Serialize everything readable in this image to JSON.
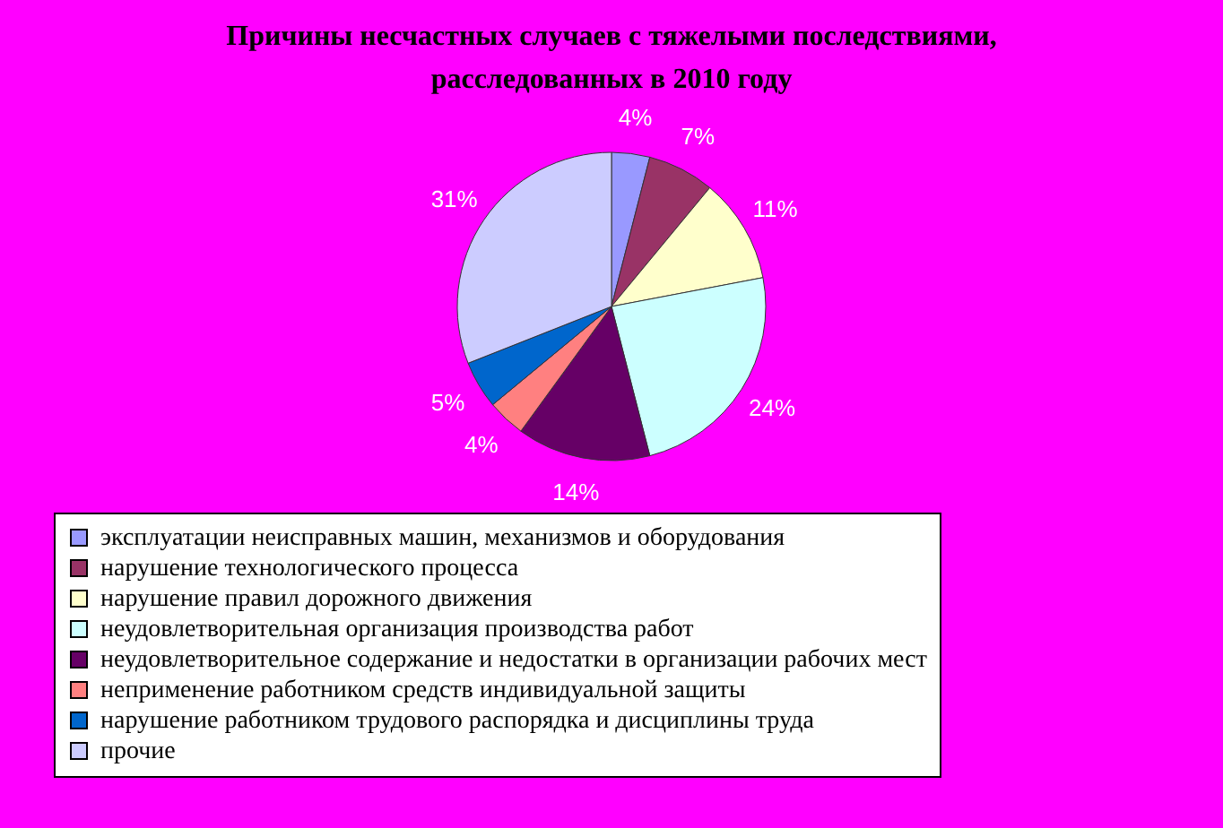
{
  "chart_data": {
    "type": "pie",
    "title": "Причины несчастных случаев с тяжелыми последствиями, расследованных в 2010 году",
    "categories": [
      "эксплуатации неисправных машин, механизмов и оборудования",
      "нарушение технологического процесса",
      "нарушение правил дорожного движения",
      "неудовлетворительная организация производства работ",
      "неудовлетворительное содержание и недостатки в организации рабочих мест",
      "неприменение работником средств индивидуальной защиты",
      "нарушение работником трудового распорядка и дисциплины труда",
      "прочие"
    ],
    "values": [
      4,
      7,
      11,
      24,
      14,
      4,
      5,
      31
    ],
    "colors": [
      "#9999ff",
      "#993366",
      "#ffffcc",
      "#ccffff",
      "#660066",
      "#ff8080",
      "#0066cc",
      "#ccccff"
    ],
    "value_labels": [
      "4%",
      "7%",
      "11%",
      "24%",
      "14%",
      "4%",
      "5%",
      "31%"
    ],
    "legend": "bottom"
  }
}
